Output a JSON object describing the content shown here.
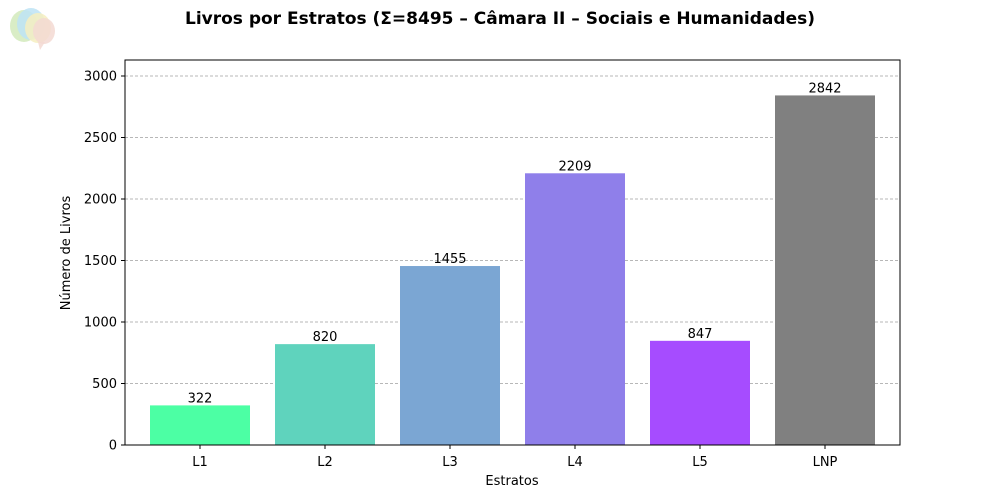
{
  "logo": {
    "icon": "speech-bubbles-logo-icon"
  },
  "chart_data": {
    "type": "bar",
    "title": "Livros por Estratos (Σ=8495 – Câmara II – Sociais e Humanidades)",
    "xlabel": "Estratos",
    "ylabel": "Número de Livros",
    "categories": [
      "L1",
      "L2",
      "L3",
      "L4",
      "L5",
      "LNP"
    ],
    "values": [
      322,
      820,
      1455,
      2209,
      847,
      2842
    ],
    "value_labels": [
      "322",
      "820",
      "1455",
      "2209",
      "847",
      "2842"
    ],
    "colors": [
      "#4cffa4",
      "#5fd3bd",
      "#7ba6d3",
      "#8f7fea",
      "#a64cff",
      "#808080"
    ],
    "ylim": [
      0,
      3130
    ],
    "yticks": [
      0,
      500,
      1000,
      1500,
      2000,
      2500,
      3000
    ],
    "ytick_labels": [
      "0",
      "500",
      "1000",
      "1500",
      "2000",
      "2500",
      "3000"
    ],
    "grid": "y",
    "legend": "none"
  }
}
